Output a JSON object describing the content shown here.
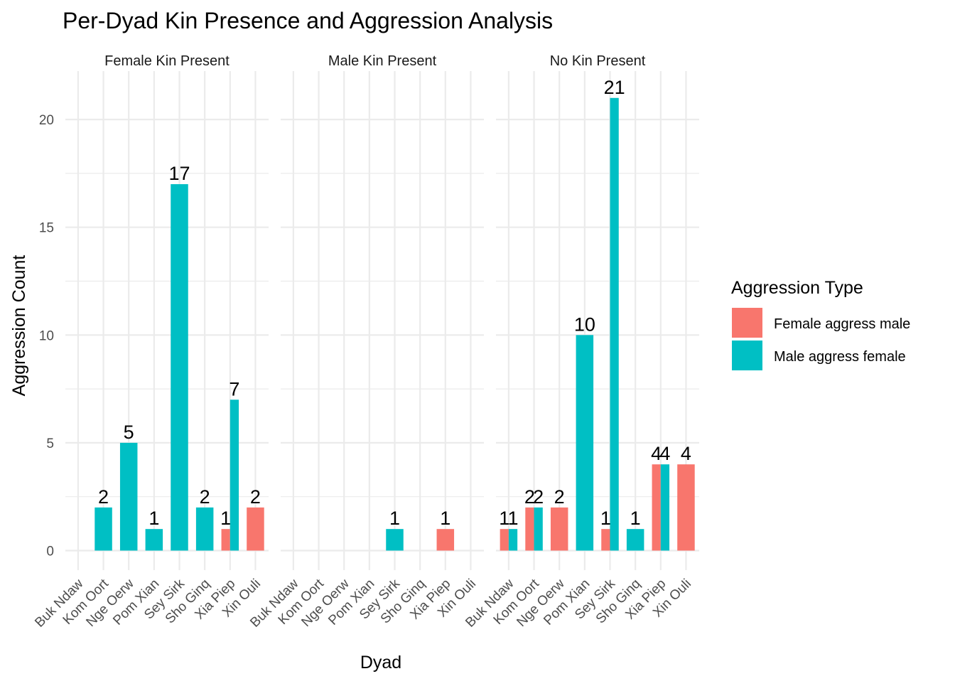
{
  "chart_data": {
    "type": "bar",
    "title": "Per-Dyad Kin Presence and Aggression Analysis",
    "xlabel": "Dyad",
    "ylabel": "Aggression Count",
    "ylim": [
      0,
      22
    ],
    "yticks": [
      0,
      5,
      10,
      15,
      20
    ],
    "categories": [
      "Buk Ndaw",
      "Kom Oort",
      "Nge Oerw",
      "Pom Xian",
      "Sey Sirk",
      "Sho Ginq",
      "Xia Piep",
      "Xin Ouli"
    ],
    "legend": {
      "title": "Aggression Type",
      "position": "right",
      "entries": [
        "Female aggress male",
        "Male aggress female"
      ]
    },
    "colors": {
      "Female aggress male": "#F8766D",
      "Male aggress female": "#00BFC4",
      "grid": "#ebebeb"
    },
    "grid": true,
    "facets": [
      {
        "label": "Female Kin Present",
        "series": [
          {
            "name": "Female aggress male",
            "values": [
              null,
              null,
              null,
              null,
              null,
              null,
              1,
              2
            ]
          },
          {
            "name": "Male aggress female",
            "values": [
              null,
              2,
              5,
              1,
              17,
              2,
              7,
              null
            ]
          }
        ]
      },
      {
        "label": "Male Kin Present",
        "series": [
          {
            "name": "Female aggress male",
            "values": [
              null,
              null,
              null,
              null,
              null,
              null,
              1,
              null
            ]
          },
          {
            "name": "Male aggress female",
            "values": [
              null,
              null,
              null,
              null,
              1,
              null,
              null,
              null
            ]
          }
        ]
      },
      {
        "label": "No Kin Present",
        "series": [
          {
            "name": "Female aggress male",
            "values": [
              1,
              2,
              2,
              null,
              1,
              null,
              4,
              4
            ]
          },
          {
            "name": "Male aggress female",
            "values": [
              1,
              2,
              null,
              10,
              21,
              1,
              4,
              null
            ]
          }
        ]
      }
    ]
  }
}
